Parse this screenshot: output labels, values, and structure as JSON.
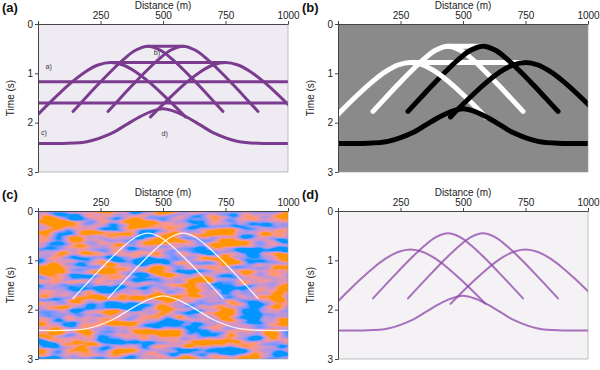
{
  "chart_data": [
    {
      "type": "line",
      "title": "(a)",
      "x_label": "Distance (m)",
      "y_label": "Time (s)",
      "xlim": [
        0,
        1000
      ],
      "ylim": [
        0,
        3
      ],
      "xticks": [
        250,
        500,
        750,
        1000
      ],
      "yticks": [
        0,
        1,
        2,
        3
      ],
      "annotations": [
        {
          "text": "a)",
          "x": 30,
          "y": 0.92
        },
        {
          "text": "b)",
          "x": 463,
          "y": 0.62
        },
        {
          "text": "c)",
          "x": 12,
          "y": 2.25
        },
        {
          "text": "d)",
          "x": 494,
          "y": 2.27
        }
      ],
      "series": [
        {
          "color": "#7b3b8f",
          "x": [
            440,
            580
          ],
          "values": [
            0.45,
            0.45
          ]
        },
        {
          "color": "#7b3b8f",
          "x": [
            290,
            750
          ],
          "values": [
            0.78,
            0.78
          ]
        },
        {
          "color": "#7b3b8f",
          "x": [
            0,
            1000
          ],
          "values": [
            1.17,
            1.17
          ]
        },
        {
          "color": "#7b3b8f",
          "x": [
            0,
            1000
          ],
          "values": [
            1.6,
            1.6
          ]
        },
        {
          "color": "#7b3b8f",
          "x": [
            140,
            190,
            240,
            290,
            340,
            390,
            440,
            490,
            540,
            590,
            640,
            690,
            740
          ],
          "values": [
            1.772,
            1.498,
            1.228,
            0.968,
            0.728,
            0.533,
            0.45,
            0.533,
            0.728,
            0.968,
            1.228,
            1.498,
            1.772
          ]
        },
        {
          "color": "#7b3b8f",
          "x": [
            280,
            330,
            380,
            430,
            480,
            530,
            580,
            630,
            680,
            730,
            780,
            830,
            880
          ],
          "values": [
            1.772,
            1.498,
            1.228,
            0.968,
            0.728,
            0.533,
            0.45,
            0.533,
            0.728,
            0.968,
            1.228,
            1.498,
            1.772
          ]
        },
        {
          "color": "#7b3b8f",
          "x": [
            -10,
            40,
            90,
            140,
            190,
            240,
            290,
            340,
            390,
            440,
            490,
            540,
            590
          ],
          "values": [
            1.883,
            1.628,
            1.384,
            1.159,
            0.967,
            0.831,
            0.78,
            0.831,
            0.967,
            1.159,
            1.384,
            1.628,
            1.883
          ]
        },
        {
          "color": "#7b3b8f",
          "x": [
            450,
            500,
            550,
            600,
            650,
            700,
            750,
            800,
            850,
            900,
            950,
            1000,
            1050
          ],
          "values": [
            1.883,
            1.628,
            1.384,
            1.159,
            0.967,
            0.831,
            0.78,
            0.831,
            0.967,
            1.159,
            1.384,
            1.628,
            1.883
          ]
        },
        {
          "color": "#7b3b8f",
          "x": [
            0,
            100,
            200,
            300,
            350,
            400,
            450,
            500,
            550,
            600,
            650,
            700,
            800,
            900,
            1000
          ],
          "values": [
            2.42,
            2.42,
            2.38,
            2.2,
            2.05,
            1.9,
            1.78,
            1.72,
            1.78,
            1.9,
            2.05,
            2.2,
            2.38,
            2.42,
            2.42
          ]
        }
      ]
    },
    {
      "type": "line",
      "title": "(b)",
      "x_label": "Distance (m)",
      "y_label": "Time (s)",
      "xlim": [
        0,
        1000
      ],
      "ylim": [
        0,
        3
      ],
      "xticks": [
        250,
        500,
        750,
        1000
      ],
      "yticks": [
        0,
        1,
        2,
        3
      ],
      "series": [
        {
          "color": "#ffffff",
          "x": [
            440,
            580
          ],
          "values": [
            0.45,
            0.45
          ]
        },
        {
          "color": "#ffffff",
          "x": [
            290,
            750
          ],
          "values": [
            0.78,
            0.78
          ]
        },
        {
          "color": "#ffffff",
          "x": [
            140,
            190,
            240,
            290,
            340,
            390,
            440,
            490,
            540,
            590,
            640,
            690,
            740
          ],
          "values": [
            1.772,
            1.498,
            1.228,
            0.968,
            0.728,
            0.533,
            0.45,
            0.533,
            0.728,
            0.968,
            1.228,
            1.498,
            1.772
          ]
        },
        {
          "color": "#000000",
          "x": [
            280,
            330,
            380,
            430,
            480,
            530,
            580,
            630,
            680,
            730,
            780,
            830,
            880
          ],
          "values": [
            1.772,
            1.498,
            1.228,
            0.968,
            0.728,
            0.533,
            0.45,
            0.533,
            0.728,
            0.968,
            1.228,
            1.498,
            1.772
          ]
        },
        {
          "color": "#ffffff",
          "x": [
            -10,
            40,
            90,
            140,
            190,
            240,
            290,
            340,
            390,
            440,
            490,
            540,
            590
          ],
          "values": [
            1.883,
            1.628,
            1.384,
            1.159,
            0.967,
            0.831,
            0.78,
            0.831,
            0.967,
            1.159,
            1.384,
            1.628,
            1.883
          ]
        },
        {
          "color": "#000000",
          "x": [
            450,
            500,
            550,
            600,
            650,
            700,
            750,
            800,
            850,
            900,
            950,
            1000,
            1050
          ],
          "values": [
            1.883,
            1.628,
            1.384,
            1.159,
            0.967,
            0.831,
            0.78,
            0.831,
            0.967,
            1.159,
            1.384,
            1.628,
            1.883
          ]
        },
        {
          "color": "#000000",
          "x": [
            0,
            100,
            200,
            300,
            350,
            400,
            450,
            500,
            550,
            600,
            650,
            700,
            800,
            900,
            1000
          ],
          "values": [
            2.42,
            2.42,
            2.38,
            2.2,
            2.05,
            1.9,
            1.78,
            1.72,
            1.78,
            1.9,
            2.05,
            2.2,
            2.38,
            2.42,
            2.42
          ]
        }
      ]
    },
    {
      "type": "line",
      "title": "(c)",
      "x_label": "Distance (m)",
      "y_label": "Time (s)",
      "xlim": [
        0,
        1000
      ],
      "ylim": [
        0,
        3
      ],
      "xticks": [
        250,
        500,
        750,
        1000
      ],
      "yticks": [
        0,
        1,
        2,
        3
      ],
      "series": [
        {
          "color": "#ffffff",
          "x": [
            140,
            190,
            240,
            290,
            340,
            390,
            440,
            490,
            540,
            590,
            640,
            690,
            740
          ],
          "values": [
            1.772,
            1.498,
            1.228,
            0.968,
            0.728,
            0.533,
            0.45,
            0.533,
            0.728,
            0.968,
            1.228,
            1.498,
            1.772
          ]
        },
        {
          "color": "#ffffff",
          "x": [
            280,
            330,
            380,
            430,
            480,
            530,
            580,
            630,
            680,
            730,
            780,
            830,
            880
          ],
          "values": [
            1.772,
            1.498,
            1.228,
            0.968,
            0.728,
            0.533,
            0.45,
            0.533,
            0.728,
            0.968,
            1.228,
            1.498,
            1.772
          ]
        },
        {
          "color": "#ffffff",
          "x": [
            0,
            100,
            200,
            300,
            350,
            400,
            450,
            500,
            550,
            600,
            650,
            700,
            800,
            900,
            1000
          ],
          "values": [
            2.42,
            2.42,
            2.38,
            2.2,
            2.05,
            1.9,
            1.78,
            1.72,
            1.78,
            1.9,
            2.05,
            2.2,
            2.38,
            2.42,
            2.42
          ]
        }
      ]
    },
    {
      "type": "line",
      "title": "(d)",
      "x_label": "Distance (m)",
      "y_label": "Time (s)",
      "xlim": [
        0,
        1000
      ],
      "ylim": [
        0,
        3
      ],
      "xticks": [
        250,
        500,
        750,
        1000
      ],
      "yticks": [
        0,
        1,
        2,
        3
      ],
      "series": [
        {
          "color": "#8e44a8",
          "x": [
            140,
            190,
            240,
            290,
            340,
            390,
            440,
            490,
            540,
            590,
            640,
            690,
            740
          ],
          "values": [
            1.772,
            1.498,
            1.228,
            0.968,
            0.728,
            0.533,
            0.45,
            0.533,
            0.728,
            0.968,
            1.228,
            1.498,
            1.772
          ]
        },
        {
          "color": "#8e44a8",
          "x": [
            280,
            330,
            380,
            430,
            480,
            530,
            580,
            630,
            680,
            730,
            780,
            830,
            880
          ],
          "values": [
            1.772,
            1.498,
            1.228,
            0.968,
            0.728,
            0.533,
            0.45,
            0.533,
            0.728,
            0.968,
            1.228,
            1.498,
            1.772
          ]
        },
        {
          "color": "#8e44a8",
          "x": [
            -10,
            40,
            90,
            140,
            190,
            240,
            290,
            340,
            390,
            440,
            490,
            540,
            590
          ],
          "values": [
            1.883,
            1.628,
            1.384,
            1.159,
            0.967,
            0.831,
            0.78,
            0.831,
            0.967,
            1.159,
            1.384,
            1.628,
            1.883
          ]
        },
        {
          "color": "#8e44a8",
          "x": [
            450,
            500,
            550,
            600,
            650,
            700,
            750,
            800,
            850,
            900,
            950,
            1000,
            1050
          ],
          "values": [
            1.883,
            1.628,
            1.384,
            1.159,
            0.967,
            0.831,
            0.78,
            0.831,
            0.967,
            1.159,
            1.384,
            1.628,
            1.883
          ]
        },
        {
          "color": "#8e44a8",
          "x": [
            0,
            100,
            200,
            300,
            350,
            400,
            450,
            500,
            550,
            600,
            650,
            700,
            800,
            900,
            1000
          ],
          "values": [
            2.42,
            2.42,
            2.38,
            2.2,
            2.05,
            1.9,
            1.78,
            1.72,
            1.78,
            1.9,
            2.05,
            2.2,
            2.38,
            2.42,
            2.42
          ]
        }
      ]
    }
  ]
}
